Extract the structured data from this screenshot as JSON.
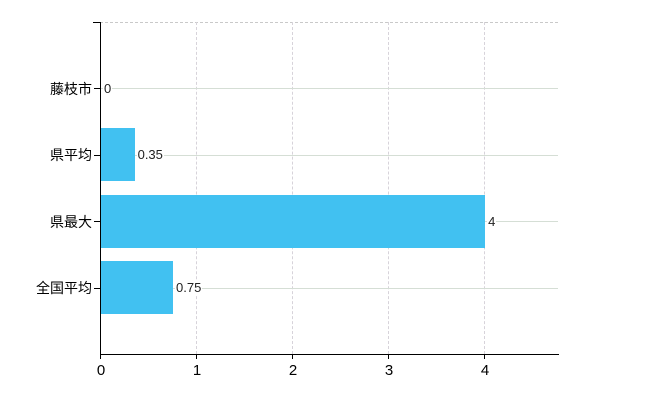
{
  "chart_data": {
    "type": "bar",
    "orientation": "horizontal",
    "title": "",
    "xlabel": "",
    "ylabel": "",
    "categories": [
      "藤枝市",
      "県平均",
      "県最大",
      "全国平均"
    ],
    "values": [
      0,
      0.35,
      4,
      0.75
    ],
    "value_labels": [
      "0",
      "0.35",
      "4",
      "0.75"
    ],
    "x_ticks": [
      0,
      1,
      2,
      3,
      4
    ],
    "x_tick_labels": [
      "0",
      "1",
      "2",
      "3",
      "4"
    ],
    "xlim": [
      0,
      4.77
    ],
    "grid": true,
    "legend": false,
    "colors": {
      "bar": "#41c1f1",
      "axis": "#000000",
      "grid_horizontal": "#d5ded5",
      "grid_vertical": "#d7d3da",
      "plot_top_border": "#c9c9c9",
      "category_label": "#000000",
      "tick_label": "#000000",
      "value_label": "#222222",
      "background": "#ffffff"
    }
  }
}
